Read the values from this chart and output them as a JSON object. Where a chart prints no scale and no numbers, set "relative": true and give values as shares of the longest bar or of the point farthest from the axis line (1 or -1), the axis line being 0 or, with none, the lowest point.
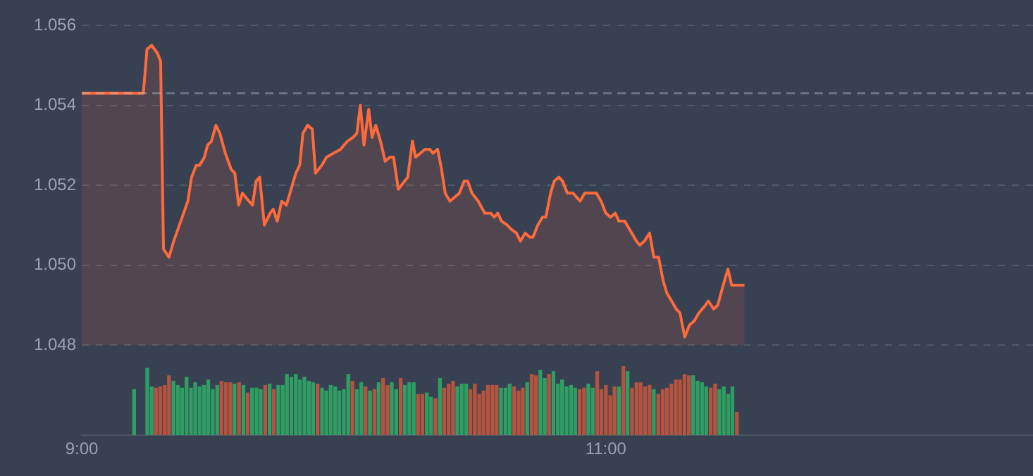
{
  "chart_data": [
    {
      "type": "area",
      "xlim": [
        9,
        12.63
      ],
      "ylim": [
        1.048,
        1.056
      ],
      "yticks": [
        1.048,
        {
          "value": 1.05,
          "label": "1.050"
        },
        1.052,
        1.054,
        1.056
      ],
      "grid": "y",
      "tick_labels": "y",
      "ref_lines": [
        {
          "axis": "y",
          "value": 1.0543
        }
      ],
      "series": [
        {
          "color": "#ff6a3d",
          "x": [
            9,
            9.235,
            9.249,
            9.267,
            9.289,
            9.301,
            9.312,
            9.333,
            9.351,
            9.378,
            9.405,
            9.419,
            9.437,
            9.45,
            9.468,
            9.48,
            9.495,
            9.512,
            9.527,
            9.548,
            9.57,
            9.584,
            9.599,
            9.613,
            9.638,
            9.652,
            9.665,
            9.679,
            9.697,
            9.719,
            9.731,
            9.746,
            9.763,
            9.781,
            9.799,
            9.817,
            9.832,
            9.844,
            9.862,
            9.88,
            9.892,
            9.916,
            9.934,
            9.961,
            9.988,
            10,
            10.014,
            10.036,
            10.05,
            10.063,
            10.077,
            10.095,
            10.108,
            10.122,
            10.14,
            10.158,
            10.176,
            10.19,
            10.208,
            10.244,
            10.262,
            10.274,
            10.31,
            10.328,
            10.34,
            10.358,
            10.373,
            10.387,
            10.405,
            10.423,
            10.441,
            10.459,
            10.473,
            10.489,
            10.513,
            10.538,
            10.561,
            10.574,
            10.588,
            10.602,
            10.624,
            10.638,
            10.659,
            10.674,
            10.692,
            10.71,
            10.722,
            10.74,
            10.758,
            10.771,
            10.789,
            10.803,
            10.821,
            10.835,
            10.853,
            10.875,
            10.902,
            10.919,
            10.943,
            10.964,
            10.982,
            11,
            11.018,
            11.036,
            11.05,
            11.072,
            11.09,
            11.117,
            11.129,
            11.147,
            11.167,
            11.183,
            11.201,
            11.219,
            11.233,
            11.251,
            11.269,
            11.283,
            11.301,
            11.319,
            11.337,
            11.355,
            11.38,
            11.391,
            11.412,
            11.427,
            11.448,
            11.466,
            11.48,
            11.529
          ],
          "values": [
            1.0543,
            1.0543,
            1.0554,
            1.0555,
            1.0553,
            1.0551,
            1.0504,
            1.0502,
            1.0506,
            1.0511,
            1.0516,
            1.0522,
            1.0525,
            1.0525,
            1.0527,
            1.053,
            1.0531,
            1.0535,
            1.0533,
            1.0528,
            1.0524,
            1.0523,
            1.0515,
            1.0518,
            1.0516,
            1.0515,
            1.0521,
            1.0522,
            1.051,
            1.0513,
            1.0514,
            1.0511,
            1.0516,
            1.0515,
            1.0519,
            1.0523,
            1.0525,
            1.0533,
            1.0535,
            1.0534,
            1.0523,
            1.0525,
            1.0527,
            1.0528,
            1.0529,
            1.053,
            1.0531,
            1.0532,
            1.0533,
            1.054,
            1.053,
            1.0539,
            1.0532,
            1.0535,
            1.0531,
            1.0526,
            1.0527,
            1.0527,
            1.0519,
            1.0522,
            1.0531,
            1.0527,
            1.0529,
            1.0529,
            1.0528,
            1.0529,
            1.0524,
            1.0518,
            1.0516,
            1.0517,
            1.0518,
            1.0521,
            1.0521,
            1.0518,
            1.0516,
            1.0513,
            1.0513,
            1.0512,
            1.0513,
            1.0511,
            1.051,
            1.0509,
            1.0508,
            1.0506,
            1.0508,
            1.0507,
            1.0507,
            1.051,
            1.0512,
            1.0512,
            1.0518,
            1.0521,
            1.0522,
            1.0521,
            1.0518,
            1.0518,
            1.0516,
            1.0518,
            1.0518,
            1.0518,
            1.0516,
            1.0513,
            1.0512,
            1.0513,
            1.0511,
            1.0511,
            1.0509,
            1.0506,
            1.0505,
            1.0506,
            1.0508,
            1.0502,
            1.0502,
            1.0496,
            1.0493,
            1.0491,
            1.0489,
            1.0488,
            1.0482,
            1.0485,
            1.0486,
            1.0488,
            1.049,
            1.0491,
            1.0489,
            1.049,
            1.0495,
            1.0499,
            1.0495,
            1.0495
          ]
        }
      ]
    },
    {
      "type": "bar",
      "relative": true,
      "xlim": [
        9,
        12.63
      ],
      "xticks": [
        {
          "value": 9,
          "label": "9:00"
        },
        {
          "value": 11,
          "label": "11:00"
        }
      ],
      "x": [
        9.2,
        9.25,
        9.267,
        9.283,
        9.3,
        9.317,
        9.333,
        9.35,
        9.367,
        9.383,
        9.4,
        9.417,
        9.433,
        9.45,
        9.467,
        9.483,
        9.5,
        9.517,
        9.533,
        9.55,
        9.567,
        9.583,
        9.6,
        9.617,
        9.633,
        9.65,
        9.667,
        9.683,
        9.7,
        9.717,
        9.733,
        9.75,
        9.767,
        9.783,
        9.8,
        9.817,
        9.833,
        9.85,
        9.867,
        9.883,
        9.9,
        9.917,
        9.933,
        9.95,
        9.967,
        9.983,
        10,
        10.017,
        10.033,
        10.05,
        10.067,
        10.083,
        10.1,
        10.117,
        10.133,
        10.15,
        10.167,
        10.183,
        10.2,
        10.217,
        10.233,
        10.25,
        10.267,
        10.283,
        10.3,
        10.317,
        10.333,
        10.35,
        10.367,
        10.383,
        10.4,
        10.417,
        10.433,
        10.45,
        10.467,
        10.483,
        10.5,
        10.517,
        10.533,
        10.55,
        10.567,
        10.583,
        10.6,
        10.617,
        10.633,
        10.65,
        10.667,
        10.683,
        10.7,
        10.717,
        10.733,
        10.75,
        10.767,
        10.783,
        10.8,
        10.817,
        10.833,
        10.85,
        10.867,
        10.883,
        10.9,
        10.917,
        10.933,
        10.95,
        10.967,
        10.983,
        11,
        11.017,
        11.033,
        11.05,
        11.067,
        11.083,
        11.1,
        11.117,
        11.133,
        11.15,
        11.167,
        11.183,
        11.2,
        11.217,
        11.233,
        11.25,
        11.267,
        11.283,
        11.3,
        11.317,
        11.333,
        11.35,
        11.367,
        11.383,
        11.4,
        11.417,
        11.433,
        11.45,
        11.467,
        11.483,
        11.5
      ],
      "values": [
        0.66,
        0.97,
        0.7,
        0.68,
        0.7,
        0.72,
        0.86,
        0.78,
        0.72,
        0.68,
        0.84,
        0.68,
        0.76,
        0.7,
        0.72,
        0.8,
        0.66,
        0.72,
        0.78,
        0.76,
        0.76,
        0.74,
        0.76,
        0.72,
        0.61,
        0.68,
        0.68,
        0.66,
        0.72,
        0.74,
        0.66,
        0.72,
        0.72,
        0.88,
        0.84,
        0.88,
        0.8,
        0.84,
        0.78,
        0.76,
        0.74,
        0.68,
        0.64,
        0.72,
        0.7,
        0.64,
        0.66,
        0.88,
        0.78,
        0.66,
        0.76,
        0.7,
        0.64,
        0.66,
        0.76,
        0.82,
        0.72,
        0.76,
        0.66,
        0.82,
        0.72,
        0.76,
        0.76,
        0.59,
        0.59,
        0.61,
        0.55,
        0.53,
        0.82,
        0.68,
        0.74,
        0.78,
        0.7,
        0.74,
        0.74,
        0.66,
        0.74,
        0.59,
        0.64,
        0.72,
        0.72,
        0.72,
        0.68,
        0.68,
        0.74,
        0.7,
        0.64,
        0.68,
        0.76,
        0.88,
        0.86,
        0.94,
        0.82,
        0.88,
        0.92,
        0.74,
        0.8,
        0.7,
        0.72,
        0.68,
        0.66,
        0.68,
        0.74,
        0.68,
        0.92,
        0.66,
        0.72,
        0.57,
        0.7,
        0.7,
        1,
        0.92,
        0.68,
        0.76,
        0.76,
        0.7,
        0.72,
        0.66,
        0.59,
        0.66,
        0.68,
        0.74,
        0.8,
        0.8,
        0.88,
        0.86,
        0.86,
        0.78,
        0.76,
        0.7,
        0.68,
        0.74,
        0.66,
        0.7,
        0.59,
        0.7,
        0.33
      ],
      "colors": [
        "#2f9e63",
        "#2f9e63",
        "#2f9e63",
        "#b4533f",
        "#b4533f",
        "#b4533f",
        "#b4533f",
        "#2f9e63",
        "#2f9e63",
        "#2f9e63",
        "#2f9e63",
        "#2f9e63",
        "#2f9e63",
        "#2f9e63",
        "#2f9e63",
        "#2f9e63",
        "#2f9e63",
        "#2f9e63",
        "#b4533f",
        "#b4533f",
        "#b4533f",
        "#2f9e63",
        "#b4533f",
        "#2f9e63",
        "#b4533f",
        "#2f9e63",
        "#2f9e63",
        "#2f9e63",
        "#b4533f",
        "#2f9e63",
        "#b4533f",
        "#2f9e63",
        "#2f9e63",
        "#2f9e63",
        "#2f9e63",
        "#2f9e63",
        "#2f9e63",
        "#2f9e63",
        "#2f9e63",
        "#2f9e63",
        "#b4533f",
        "#2f9e63",
        "#2f9e63",
        "#2f9e63",
        "#2f9e63",
        "#2f9e63",
        "#2f9e63",
        "#2f9e63",
        "#b4533f",
        "#2f9e63",
        "#2f9e63",
        "#b4533f",
        "#2f9e63",
        "#b4533f",
        "#2f9e63",
        "#b4533f",
        "#b4533f",
        "#2f9e63",
        "#2f9e63",
        "#b4533f",
        "#2f9e63",
        "#2f9e63",
        "#2f9e63",
        "#b4533f",
        "#b4533f",
        "#2f9e63",
        "#2f9e63",
        "#b4533f",
        "#2f9e63",
        "#b4533f",
        "#b4533f",
        "#b4533f",
        "#2f9e63",
        "#2f9e63",
        "#2f9e63",
        "#b4533f",
        "#b4533f",
        "#b4533f",
        "#b4533f",
        "#b4533f",
        "#b4533f",
        "#b4533f",
        "#2f9e63",
        "#2f9e63",
        "#2f9e63",
        "#b4533f",
        "#b4533f",
        "#b4533f",
        "#2f9e63",
        "#b4533f",
        "#b4533f",
        "#2f9e63",
        "#2f9e63",
        "#b4533f",
        "#2f9e63",
        "#2f9e63",
        "#2f9e63",
        "#2f9e63",
        "#2f9e63",
        "#2f9e63",
        "#b4533f",
        "#b4533f",
        "#2f9e63",
        "#2f9e63",
        "#b4533f",
        "#b4533f",
        "#b4533f",
        "#b4533f",
        "#b4533f",
        "#2f9e63",
        "#b4533f",
        "#2f9e63",
        "#b4533f",
        "#b4533f",
        "#b4533f",
        "#b4533f",
        "#b4533f",
        "#2f9e63",
        "#b4533f",
        "#b4533f",
        "#b4533f",
        "#b4533f",
        "#b4533f",
        "#b4533f",
        "#b4533f",
        "#b4533f",
        "#2f9e63",
        "#2f9e63",
        "#2f9e63",
        "#2f9e63",
        "#b4533f",
        "#b4533f",
        "#2f9e63",
        "#2f9e63",
        "#2f9e63",
        "#2f9e63",
        "#b4533f"
      ]
    }
  ]
}
